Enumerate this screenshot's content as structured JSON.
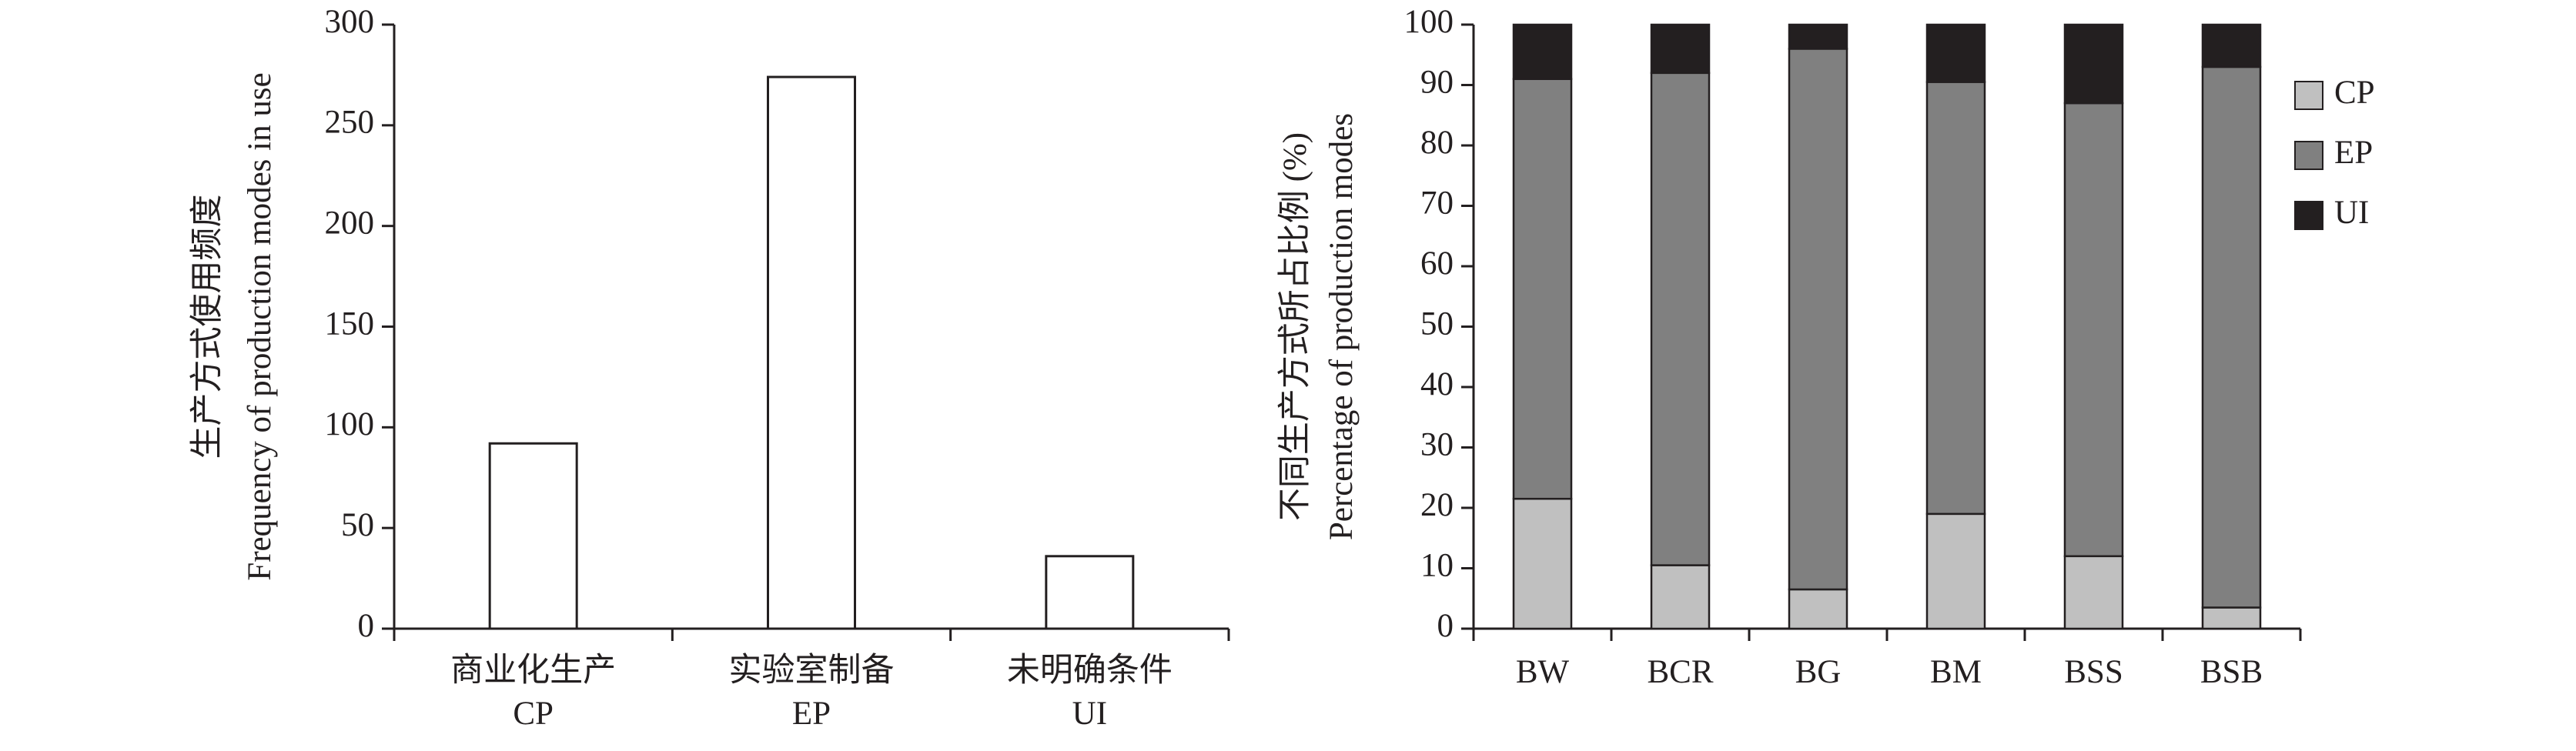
{
  "chart_data": [
    {
      "type": "bar",
      "ylabel": [
        "生产方式使用频度",
        "Frequency of production modes in use"
      ],
      "categories": [
        [
          "商业化生产",
          "CP"
        ],
        [
          "实验室制备",
          "EP"
        ],
        [
          "未明确条件",
          "UI"
        ]
      ],
      "values": [
        92,
        274,
        36
      ],
      "color": "#ffffff",
      "ylim": [
        0,
        300
      ],
      "yticks": [
        0,
        50,
        100,
        150,
        200,
        250,
        300
      ]
    },
    {
      "type": "stacked_bar",
      "ylabel": [
        "不同生产方式所占比例 (%)",
        "Percentage of production modes"
      ],
      "categories": [
        "BW",
        "BCR",
        "BG",
        "BM",
        "BSS",
        "BSB"
      ],
      "series": [
        {
          "name": "CP",
          "color": "#c0c0c0",
          "values": [
            21.5,
            10.5,
            6.5,
            19,
            12,
            3.5
          ]
        },
        {
          "name": "EP",
          "color": "#808080",
          "values": [
            69.5,
            81.5,
            89.5,
            71.5,
            75,
            89.5
          ]
        },
        {
          "name": "UI",
          "color": "#231f20",
          "values": [
            9,
            8,
            4,
            9.5,
            13,
            7
          ]
        }
      ],
      "ylim": [
        0,
        100
      ],
      "yticks": [
        0,
        10,
        20,
        30,
        40,
        50,
        60,
        70,
        80,
        90,
        100
      ],
      "legend": "right"
    }
  ]
}
